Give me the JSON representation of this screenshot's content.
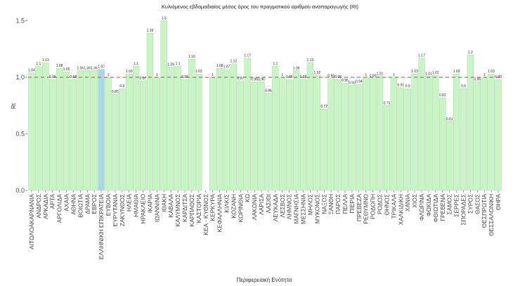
{
  "chart_data": {
    "type": "bar",
    "title": "Κυλιόμενος εβδομαδιαίος μέσος όρος του πραγματικού αριθμού αναπαραγωγής (Rt)",
    "xlabel": "Περιφερειακή Ενότητα",
    "ylabel": "Rt",
    "ylim": [
      0,
      1.55
    ],
    "yticks": [
      "0.0",
      "0.5",
      "1.0",
      "1.5"
    ],
    "ytick_values": [
      0,
      0.5,
      1.0,
      1.5
    ],
    "reference_line": {
      "value": 1.0,
      "style": "dashed",
      "color": "#e06060"
    },
    "colors": {
      "default_bar": "#c7f5c4",
      "highlight_bar": "#a8d8e6",
      "bar_edge": "#b0c8b0"
    },
    "highlight_category": "ΕΛΛΗΝΙΚΗ ΕΠΙΚΡΑΤΕΙΑ",
    "grid": false,
    "categories": [
      "ΑΙΤΩΛΟΑΚΑΡΝΑΝΙΑ",
      "ΑΝΔΡΟΣ",
      "ΑΡΚΑΔΙΑ",
      "ΑΡΤΑ",
      "ΑΡΓΟΛΙΔΑ",
      "ΑΧΑΙΑ",
      "ΑΘΗΝΑ",
      "ΒΟΙΩΤΙΑ",
      "ΔΡΑΜΑ",
      "ΕΒΡΟΣ",
      "ΕΛΛΗΝΙΚΗ ΕΠΙΚΡΑΤΕΙΑ",
      "ΕΥΒΟΙΑ",
      "ΕΥΡΥΤΑΝΙΑ",
      "ΖΑΚΥΝΘΟΣ",
      "ΗΛΕΙΑ",
      "ΗΜΑΘΙΑ",
      "ΗΡΑΚΛΕΙΟ",
      "ΙΚΑΡΙΑ",
      "ΙΩΑΝΝΙΝΑ",
      "ΙΘΑΚΗ",
      "ΚΑΒΑΛΑ",
      "ΚΑΛΥΜΝΟΣ",
      "ΚΑΡΔΙΤΣΑ",
      "ΚΑΡΠΑΘΟΣ",
      "ΚΑΣΤΟΡΙΑ",
      "ΚΕΑ - ΚΥΘΝΟΣ",
      "ΚΕΡΚΥΡΑ",
      "ΚΕΦΑΛΛΗΝΙΑ",
      "ΚΙΛΚΙΣ",
      "ΚΟΖΑΝΗ",
      "ΚΟΡΙΝΘΙΑ",
      "ΚΩ",
      "ΛΑΚΩΝΙΑ",
      "ΛΑΡΙΣΑ",
      "ΛΑΣΙΘΙ",
      "ΛΕΥΚΑΔΑ",
      "ΛΕΣΒΟΣ",
      "ΛΗΜΝΟΣ",
      "ΜΑΓΝΗΣΙΑ",
      "ΜΕΣΣΗΝΙΑ",
      "ΜΗΛΟΣ",
      "ΜΥΚΟΝΟΣ",
      "ΝΑΞΟΣ",
      "ΞΑΝΘΗ",
      "ΠΑΡΟΣ",
      "ΠΕΛΛΑ",
      "ΠΙΕΡΙΑ",
      "ΠΡΕΒΕΖΑ",
      "ΡΕΘΥΜΝΟ",
      "ΡΟΔΟΠΗ",
      "ΡΟΔΟΣ",
      "ΘΗΝΟΣ",
      "ΤΡΙΚΑΛΑ",
      "ΧΑΛΚΙΔΙΚΗ",
      "ΧΑΝΙΑ",
      "ΧΙΟΣ",
      "ΦΛΩΡΙΝΑ",
      "ΦΩΚΙΔΑ",
      "ΦΘΙΩΤΙΔΑ",
      "ΓΡΕΒΕΝΑ",
      "ΣΑΜΟΣ",
      "ΣΕΡΡΕΣ",
      "ΣΠΟΡΑΔΕΣ",
      "ΣΥΡΟΣ",
      "ΘΑΣΟΣ",
      "ΘΕΣΠΡΩΤΙΑ",
      "ΘΕΣΣΑΛΟΝΙΚΗ",
      "ΘΗΡΑ"
    ],
    "values": [
      1.04,
      1.1,
      1.13,
      0.98,
      1.08,
      1.05,
      0.98,
      1.06,
      1.06,
      1.06,
      1.07,
      1.0,
      0.85,
      0.9,
      1.03,
      1.1,
      0.97,
      1.39,
      1.0,
      1.5,
      1.09,
      1.1,
      0.98,
      1.16,
      1.03,
      null,
      1.0,
      1.08,
      1.07,
      1.12,
      0.97,
      1.17,
      0.96,
      0.96,
      0.86,
      1.1,
      1.0,
      0.98,
      1.06,
      0.98,
      1.13,
      1.02,
      0.72,
      0.99,
      0.98,
      0.95,
      0.93,
      0.94,
      1.0,
      0.99,
      1.01,
      0.75,
      1.0,
      0.91,
      0.9,
      1.03,
      1.17,
      1.01,
      1.02,
      0.82,
      0.61,
      1.03,
      0.9,
      1.2,
      0.96,
      1.0,
      1.03,
      0.98
    ],
    "data_labels": [
      "1.04",
      "1.1",
      "1.13",
      "0.98",
      "1.08",
      "1.05",
      "0.98",
      "1.06",
      "1.06",
      "1.06",
      "1.07",
      "1",
      "0.85",
      "0.9",
      "1.03",
      "1.1",
      "0.97",
      "1.39",
      "1",
      "1.5",
      "1.09",
      "1.1",
      "0.98",
      "1.16",
      "1.03",
      "",
      "1",
      "1.08",
      "1.07",
      "1.12",
      "0.97",
      "1.17",
      "0.96",
      "0.96",
      "0.86",
      "1.1",
      "1",
      "0.98",
      "1.06",
      "0.98",
      "1.13",
      "1.02",
      "0.72",
      "0.99",
      "0.98",
      "0.95",
      "0.93",
      "0.94",
      "1",
      "0.99",
      "1.01",
      "0.75",
      "1",
      "0.91",
      "0.9",
      "1.03",
      "1.17",
      "1.01",
      "1.02",
      "0.82",
      "0.61",
      "1.03",
      "0.9",
      "1.2",
      "0.96",
      "1",
      "1.03",
      "0.98"
    ]
  }
}
